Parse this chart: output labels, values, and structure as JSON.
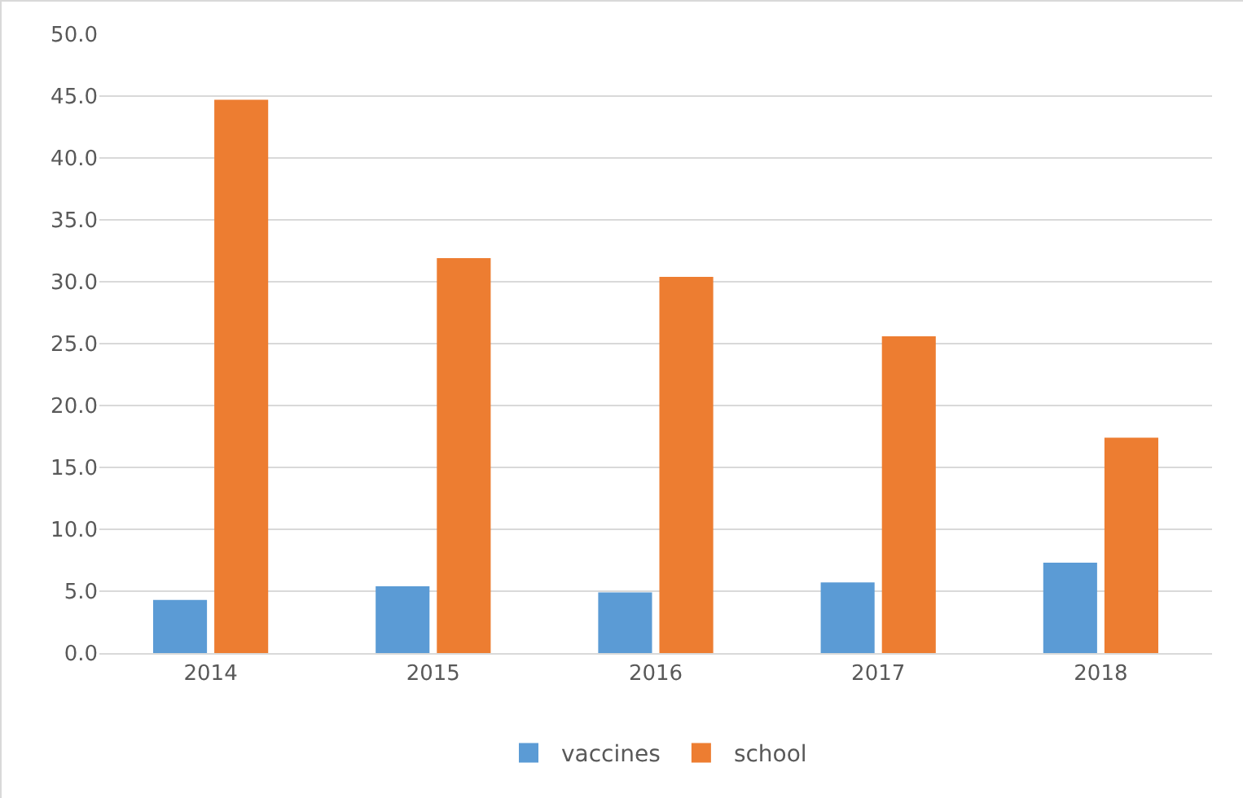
{
  "chart_data": {
    "type": "bar",
    "categories": [
      "2014",
      "2015",
      "2016",
      "2017",
      "2018"
    ],
    "series": [
      {
        "name": "vaccines",
        "color": "#5b9bd5",
        "values": [
          4.3,
          5.4,
          4.9,
          5.7,
          7.3
        ]
      },
      {
        "name": "school",
        "color": "#ed7d31",
        "values": [
          44.7,
          31.9,
          30.4,
          25.6,
          17.4
        ]
      }
    ],
    "ylim": [
      0,
      50
    ],
    "yticks": [
      {
        "value": 0,
        "label": "0.0"
      },
      {
        "value": 5,
        "label": "5.0"
      },
      {
        "value": 10,
        "label": "10.0"
      },
      {
        "value": 15,
        "label": "15.0"
      },
      {
        "value": 20,
        "label": "20.0"
      },
      {
        "value": 25,
        "label": "25.0"
      },
      {
        "value": 30,
        "label": "30.0"
      },
      {
        "value": 35,
        "label": "35.0"
      },
      {
        "value": 40,
        "label": "40.0"
      },
      {
        "value": 45,
        "label": "45.0"
      },
      {
        "value": 50,
        "label": "50.0"
      }
    ],
    "grid": "y",
    "legend": "bottom"
  }
}
